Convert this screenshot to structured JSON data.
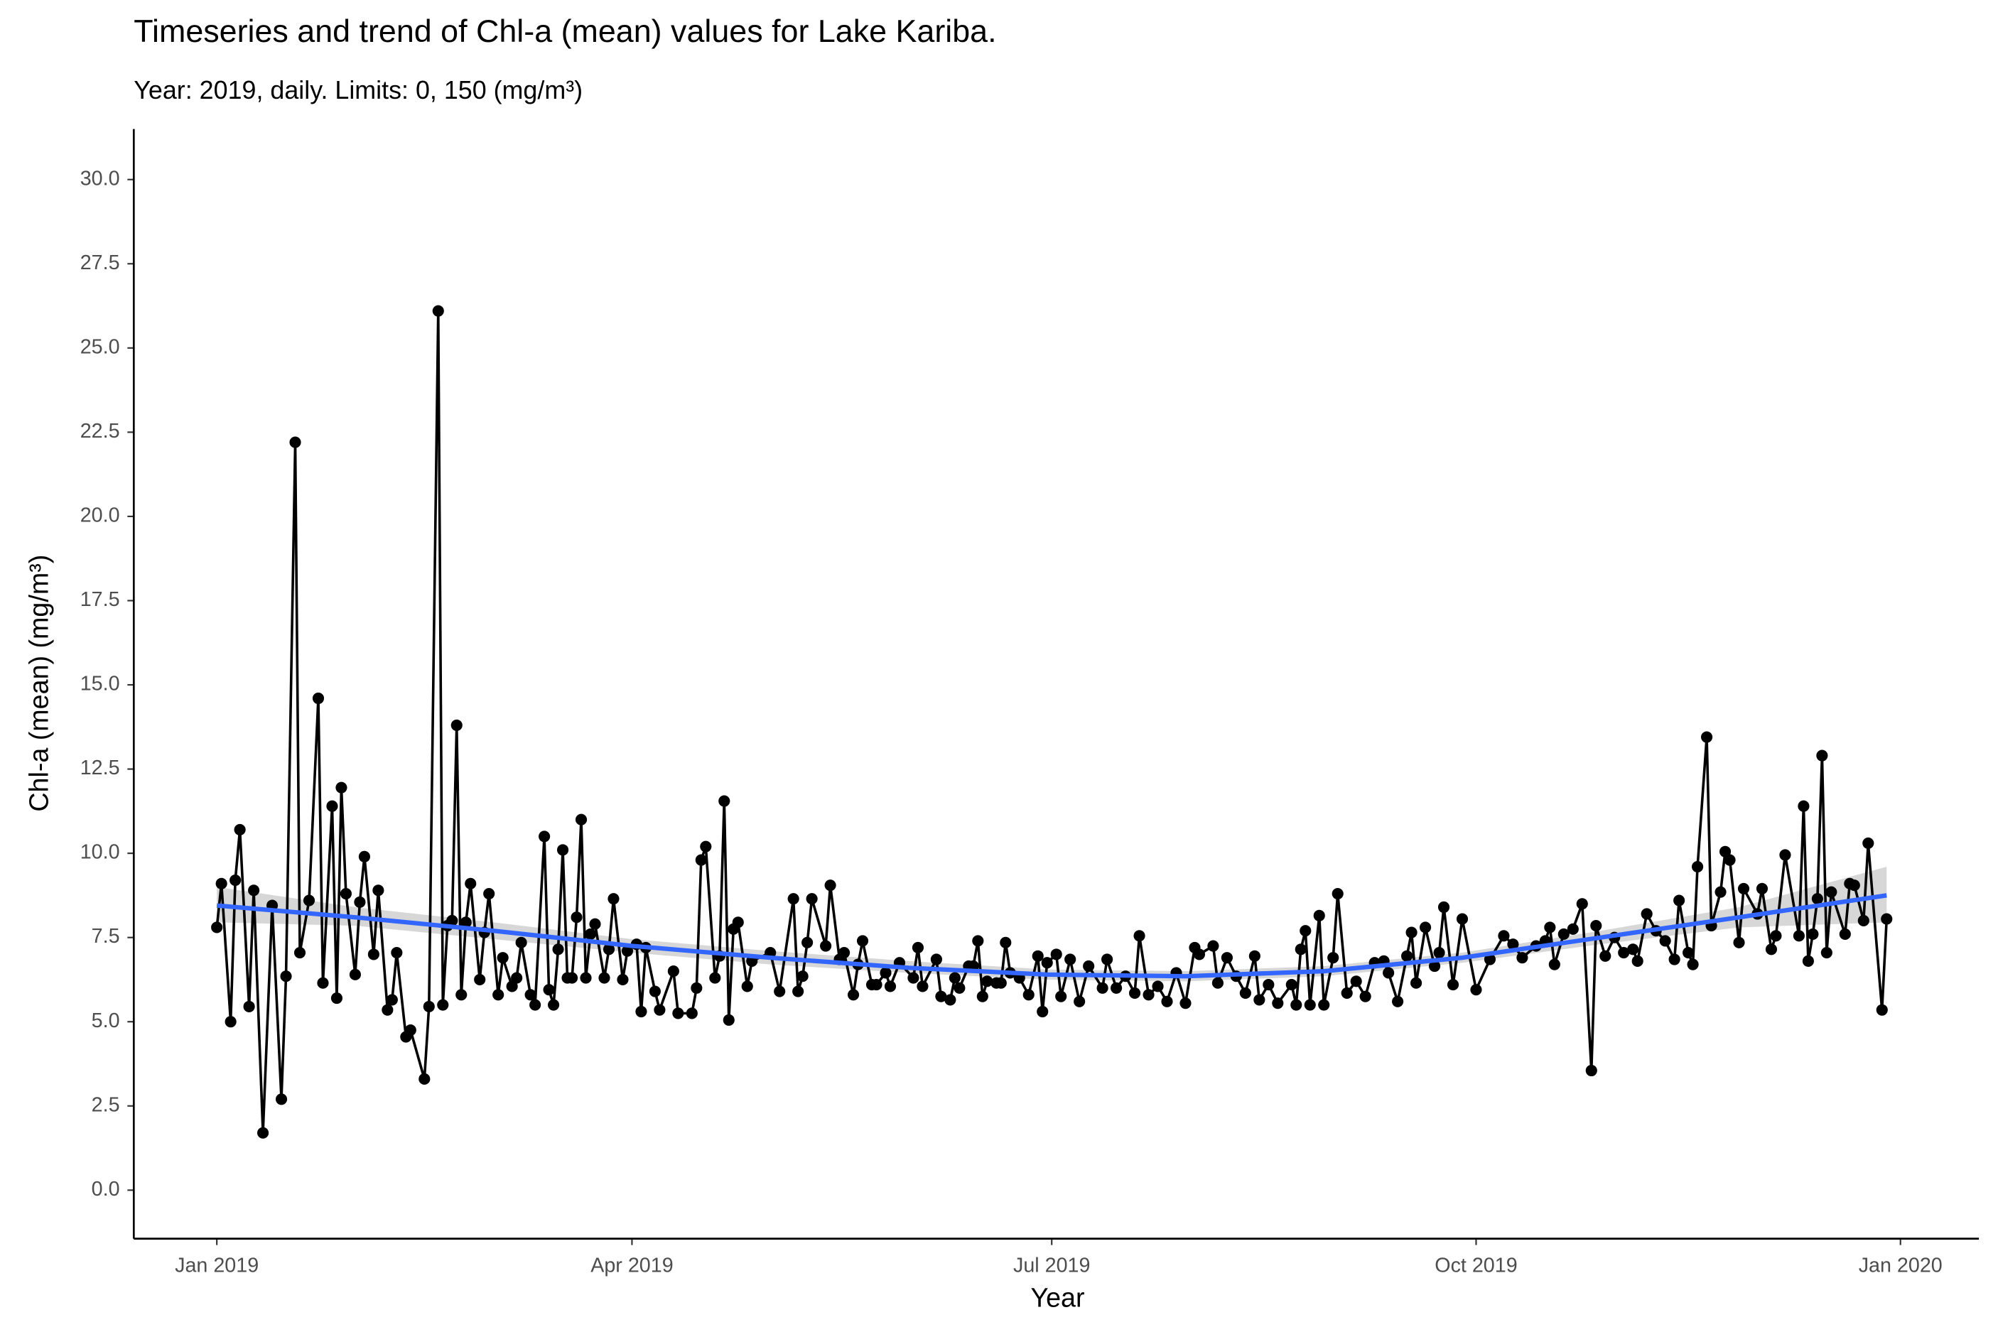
{
  "chart_data": {
    "type": "line",
    "title": "Timeseries and trend of Chl-a (mean) values for Lake Kariba.",
    "subtitle": "Year: 2019, daily. Limits: 0, 150 (mg/m³)",
    "x_label": "Year",
    "y_label": "Chl-a (mean) (mg/m³)",
    "color": "#000000",
    "x": [
      0,
      1,
      3,
      4,
      5,
      7,
      8,
      10,
      12,
      14,
      15,
      17,
      18,
      20,
      22,
      23,
      25,
      26,
      27,
      28,
      30,
      31,
      32,
      34,
      35,
      37,
      38,
      39,
      41,
      42,
      45,
      46,
      48,
      49,
      50,
      51,
      52,
      53,
      54,
      55,
      57,
      58,
      59,
      61,
      62,
      64,
      65,
      66,
      68,
      69,
      71,
      72,
      73,
      74,
      75,
      76,
      77,
      78,
      79,
      80,
      81,
      82,
      84,
      85,
      86,
      88,
      89,
      91,
      92,
      93,
      95,
      96,
      99,
      100,
      103,
      104,
      105,
      106,
      108,
      109,
      110,
      111,
      112,
      113,
      115,
      116,
      120,
      122,
      125,
      126,
      127,
      128,
      129,
      132,
      133,
      135,
      136,
      138,
      139,
      140,
      142,
      143,
      145,
      146,
      148,
      151,
      152,
      153,
      156,
      157,
      159,
      160,
      161,
      163,
      164,
      165,
      166,
      167,
      169,
      170,
      171,
      172,
      174,
      176,
      178,
      179,
      180,
      182,
      183,
      185,
      187,
      189,
      192,
      193,
      195,
      197,
      199,
      200,
      202,
      204,
      206,
      208,
      210,
      212,
      213,
      216,
      217,
      219,
      221,
      223,
      225,
      226,
      228,
      230,
      233,
      234,
      235,
      236,
      237,
      239,
      240,
      242,
      243,
      245,
      247,
      249,
      251,
      253,
      254,
      256,
      258,
      259,
      260,
      262,
      264,
      265,
      266,
      268,
      270,
      273,
      276,
      279,
      281,
      283,
      286,
      288,
      289,
      290,
      292,
      294,
      296,
      298,
      299,
      301,
      303,
      305,
      307,
      308,
      310,
      312,
      314,
      316,
      317,
      319,
      320,
      321,
      323,
      324,
      326,
      327,
      328,
      330,
      331,
      334,
      335,
      337,
      338,
      340,
      343,
      344,
      345,
      346,
      347,
      348,
      349,
      350,
      353,
      354,
      355,
      357,
      358,
      361,
      362
    ],
    "values": [
      7.8,
      9.1,
      5.0,
      9.2,
      10.7,
      5.45,
      8.9,
      1.7,
      8.45,
      2.7,
      6.35,
      22.2,
      7.05,
      8.6,
      14.6,
      6.15,
      11.4,
      5.7,
      11.95,
      8.8,
      6.4,
      8.55,
      9.9,
      7.0,
      8.9,
      5.35,
      5.65,
      7.05,
      4.55,
      4.75,
      3.3,
      5.45,
      26.1,
      5.5,
      7.85,
      8.0,
      13.8,
      5.8,
      7.95,
      9.1,
      6.25,
      7.65,
      8.8,
      5.8,
      6.9,
      6.05,
      6.3,
      7.35,
      5.8,
      5.5,
      10.5,
      5.95,
      5.5,
      7.15,
      10.1,
      6.3,
      6.3,
      8.1,
      11.0,
      6.3,
      7.6,
      7.9,
      6.3,
      7.15,
      8.65,
      6.25,
      7.1,
      7.3,
      5.3,
      7.2,
      5.9,
      5.35,
      6.5,
      5.25,
      5.25,
      6.0,
      9.8,
      10.2,
      6.3,
      6.95,
      11.55,
      5.05,
      7.75,
      7.95,
      6.05,
      6.8,
      7.05,
      5.9,
      8.65,
      5.9,
      6.35,
      7.35,
      8.65,
      7.25,
      9.05,
      6.85,
      7.05,
      5.8,
      6.7,
      7.4,
      6.1,
      6.1,
      6.45,
      6.05,
      6.75,
      6.3,
      7.2,
      6.05,
      6.85,
      5.75,
      5.65,
      6.3,
      6.0,
      6.65,
      6.65,
      7.4,
      5.75,
      6.2,
      6.15,
      6.15,
      7.35,
      6.45,
      6.3,
      5.8,
      6.95,
      5.3,
      6.75,
      7.0,
      5.75,
      6.85,
      5.6,
      6.65,
      6.0,
      6.85,
      6.0,
      6.35,
      5.85,
      7.55,
      5.8,
      6.05,
      5.6,
      6.45,
      5.55,
      7.2,
      7.0,
      7.25,
      6.15,
      6.9,
      6.35,
      5.85,
      6.95,
      5.65,
      6.1,
      5.55,
      6.1,
      5.5,
      7.15,
      7.7,
      5.5,
      8.15,
      5.5,
      6.9,
      8.8,
      5.85,
      6.2,
      5.75,
      6.75,
      6.8,
      6.45,
      5.6,
      6.95,
      7.65,
      6.15,
      7.8,
      6.65,
      7.05,
      8.4,
      6.1,
      8.05,
      5.95,
      6.85,
      7.55,
      7.3,
      6.9,
      7.25,
      7.4,
      7.8,
      6.7,
      7.6,
      7.75,
      8.5,
      3.55,
      7.85,
      6.95,
      7.5,
      7.05,
      7.15,
      6.8,
      8.2,
      7.7,
      7.4,
      6.85,
      8.6,
      7.05,
      6.7,
      9.6,
      13.45,
      7.85,
      8.85,
      10.05,
      9.8,
      7.35,
      8.95,
      8.2,
      8.95,
      7.15,
      7.55,
      9.95,
      7.55,
      11.4,
      6.8,
      7.6,
      8.65,
      12.9,
      7.05,
      8.85,
      7.6,
      9.1,
      9.05,
      8.0,
      10.3,
      5.35,
      8.05
    ],
    "trend": {
      "color": "#3366ff",
      "band_color": "#d3d3d3",
      "x": [
        0,
        30,
        60,
        90,
        120,
        150,
        180,
        210,
        240,
        270,
        300,
        330,
        362
      ],
      "values": [
        8.45,
        8.1,
        7.7,
        7.25,
        6.9,
        6.6,
        6.4,
        6.35,
        6.5,
        6.9,
        7.5,
        8.1,
        8.75
      ],
      "lower": [
        7.95,
        7.85,
        7.45,
        7.05,
        6.7,
        6.45,
        6.25,
        6.2,
        6.35,
        6.75,
        7.3,
        7.8,
        7.95
      ],
      "upper": [
        9.0,
        8.4,
        7.95,
        7.45,
        7.1,
        6.8,
        6.55,
        6.5,
        6.65,
        7.05,
        7.7,
        8.4,
        9.6
      ]
    },
    "xlim": [
      -18,
      382
    ],
    "xticks": [
      {
        "value": 0,
        "label": "Jan 2019"
      },
      {
        "value": 90,
        "label": "Apr 2019"
      },
      {
        "value": 181,
        "label": "Jul 2019"
      },
      {
        "value": 273,
        "label": "Oct 2019"
      },
      {
        "value": 365,
        "label": "Jan 2020"
      }
    ],
    "ylim": [
      -1.44,
      31.5
    ],
    "yticks": [
      {
        "value": 0,
        "label": "0.0"
      },
      2.5,
      {
        "value": 5,
        "label": "5.0"
      },
      7.5,
      {
        "value": 10,
        "label": "10.0"
      },
      12.5,
      {
        "value": 15,
        "label": "15.0"
      },
      17.5,
      {
        "value": 20,
        "label": "20.0"
      },
      22.5,
      {
        "value": 25,
        "label": "25.0"
      },
      27.5,
      {
        "value": 30,
        "label": "30.0"
      }
    ],
    "grid": false
  }
}
